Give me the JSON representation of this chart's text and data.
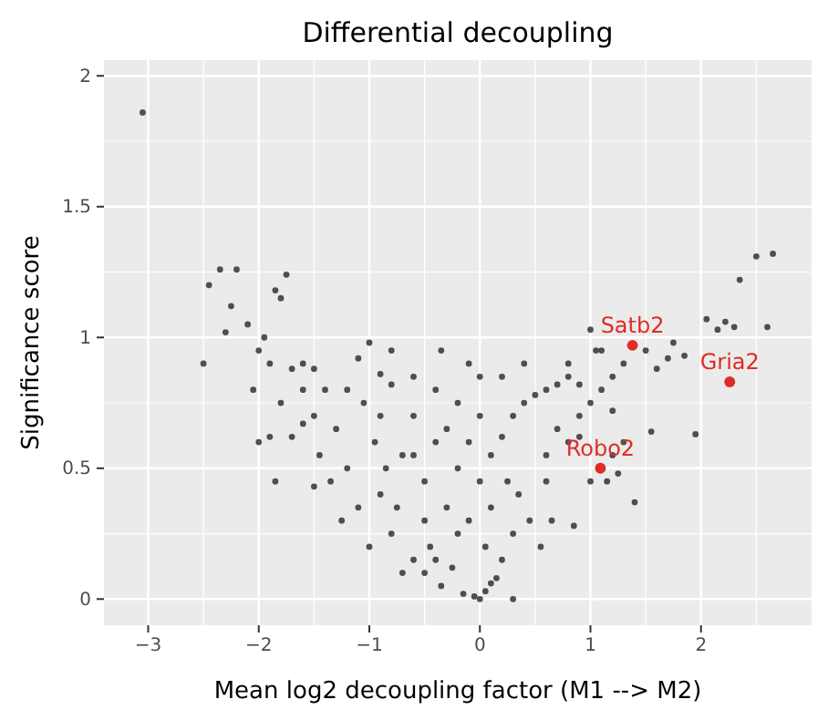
{
  "chart_data": {
    "type": "scatter",
    "title": "Differential decoupling",
    "xlabel": "Mean log2 decoupling factor (M1 --> M2)",
    "ylabel": "Significance score",
    "xlim": [
      -3.4,
      3.0
    ],
    "ylim": [
      -0.1,
      2.06
    ],
    "xticks": [
      {
        "value": -3,
        "label": "−3"
      },
      {
        "value": -2,
        "label": "−2"
      },
      {
        "value": -1,
        "label": "−1"
      },
      0,
      1,
      2
    ],
    "yticks": [
      0,
      0.5,
      1,
      1.5,
      2
    ],
    "grid": true,
    "marker": "circle",
    "series": [
      {
        "color": "#333333",
        "x": [
          -3.05,
          2.65,
          2.5,
          2.35,
          2.22,
          2.15,
          2.05,
          2.3,
          2.6,
          1.95,
          1.85,
          1.4,
          1.55,
          1.0,
          0.9,
          0.6,
          0.3,
          -2.45,
          -2.35,
          -2.2,
          -2.25,
          -2.3,
          -2.1,
          -2.0,
          -1.95,
          -1.85,
          -1.8,
          -1.75,
          -1.9,
          -1.7,
          -1.6,
          -1.5,
          -2.5,
          -2.05,
          -1.8,
          -2.0,
          -1.85,
          -1.9,
          -1.7,
          -1.6,
          -1.5,
          -1.45,
          -1.5,
          -1.35,
          -1.25,
          -1.3,
          -1.2,
          -1.1,
          -1.0,
          -0.9,
          -0.8,
          -1.05,
          -0.95,
          -0.85,
          -0.9,
          -0.8,
          -0.75,
          -0.6,
          -0.5,
          -0.45,
          -0.35,
          -0.25,
          -0.15,
          -0.05,
          0.0,
          0.05,
          0.1,
          0.15,
          0.2,
          0.05,
          -0.1,
          -0.3,
          -0.5,
          -0.7,
          -0.6,
          -0.4,
          -0.2,
          0.0,
          0.1,
          0.2,
          0.3,
          0.4,
          0.5,
          0.6,
          0.7,
          0.8,
          0.0,
          -0.2,
          -0.4,
          -0.6,
          -0.8,
          -0.3,
          0.0,
          0.2,
          0.35,
          0.45,
          0.55,
          0.6,
          0.8,
          0.9,
          1.0,
          1.1,
          1.2,
          1.3,
          1.5,
          1.6,
          1.7,
          1.75,
          1.2,
          1.3,
          1.25,
          1.2,
          0.9,
          1.0,
          1.15,
          0.65,
          0.3,
          0.8,
          0.4,
          -1.0,
          -0.7,
          -1.2,
          -1.4,
          -1.6,
          -0.5,
          -0.2,
          -0.1,
          0.25,
          -0.6,
          -1.1,
          -0.9,
          -0.35,
          -0.1,
          0.7,
          0.1,
          -0.4,
          1.05,
          0.85,
          1.1
        ],
        "values": [
          1.86,
          1.32,
          1.31,
          1.22,
          1.06,
          1.03,
          1.07,
          1.04,
          1.04,
          0.63,
          0.93,
          0.37,
          0.64,
          1.03,
          0.82,
          0.55,
          0.0,
          1.2,
          1.26,
          1.26,
          1.12,
          1.02,
          1.05,
          0.95,
          1.0,
          1.18,
          1.15,
          1.24,
          0.9,
          0.88,
          0.9,
          0.88,
          0.9,
          0.8,
          0.75,
          0.6,
          0.45,
          0.62,
          0.62,
          0.67,
          0.7,
          0.55,
          0.43,
          0.45,
          0.3,
          0.65,
          0.8,
          0.92,
          0.98,
          0.86,
          0.82,
          0.75,
          0.6,
          0.5,
          0.4,
          0.25,
          0.35,
          0.15,
          0.1,
          0.2,
          0.05,
          0.12,
          0.02,
          0.01,
          0.0,
          0.03,
          0.06,
          0.08,
          0.15,
          0.2,
          0.3,
          0.35,
          0.45,
          0.55,
          0.7,
          0.6,
          0.5,
          0.45,
          0.55,
          0.62,
          0.7,
          0.75,
          0.78,
          0.8,
          0.82,
          0.85,
          0.7,
          0.75,
          0.8,
          0.85,
          0.95,
          0.65,
          0.85,
          0.85,
          0.4,
          0.3,
          0.2,
          0.45,
          0.6,
          0.7,
          0.75,
          0.8,
          0.85,
          0.9,
          0.95,
          0.88,
          0.92,
          0.98,
          0.72,
          0.6,
          0.48,
          0.55,
          0.62,
          0.45,
          0.45,
          0.3,
          0.25,
          0.9,
          0.9,
          0.2,
          0.1,
          0.5,
          0.8,
          0.8,
          0.3,
          0.25,
          0.6,
          0.45,
          0.55,
          0.35,
          0.7,
          0.95,
          0.9,
          0.65,
          0.35,
          0.15,
          0.95,
          0.28,
          0.95
        ]
      },
      {
        "color": "#de2d26",
        "x": [
          1.38,
          2.26,
          1.09
        ],
        "values": [
          0.97,
          0.83,
          0.5
        ]
      }
    ],
    "annotations": [
      {
        "text": "Satb2",
        "x": 1.38,
        "y": 0.97
      },
      {
        "text": "Gria2",
        "x": 2.26,
        "y": 0.83
      },
      {
        "text": "Robo2",
        "x": 1.09,
        "y": 0.5
      }
    ]
  }
}
